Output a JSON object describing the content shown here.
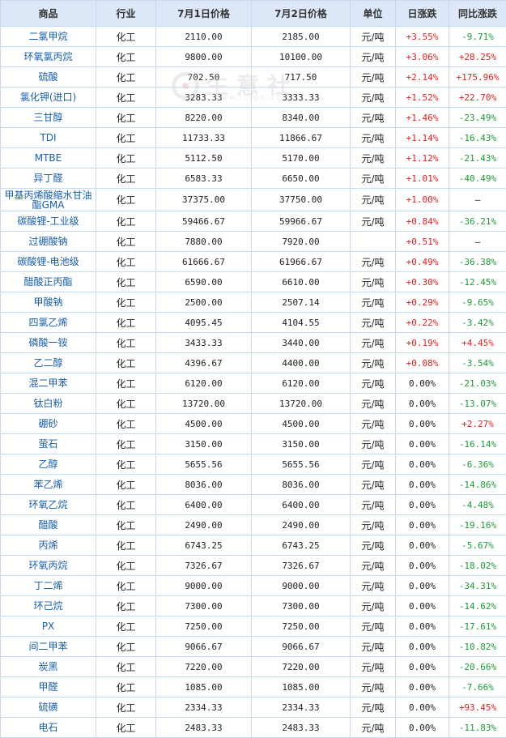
{
  "headers": [
    "商品",
    "行业",
    "7月1日价格",
    "7月2日价格",
    "单位",
    "日涨跌",
    "同比涨跌"
  ],
  "watermark": {
    "text": "生意社",
    "url": "www.100ppi.com"
  },
  "rows": [
    {
      "name": "二氯甲烷",
      "industry": "化工",
      "p1": "2110.00",
      "p2": "2185.00",
      "unit": "元/吨",
      "day": "+3.55%",
      "day_dir": "up",
      "yoy": "-9.71%",
      "yoy_dir": "down"
    },
    {
      "name": "环氧氯丙烷",
      "industry": "化工",
      "p1": "9800.00",
      "p2": "10100.00",
      "unit": "元/吨",
      "day": "+3.06%",
      "day_dir": "up",
      "yoy": "+28.25%",
      "yoy_dir": "up"
    },
    {
      "name": "硫酸",
      "industry": "化工",
      "p1": "702.50",
      "p2": "717.50",
      "unit": "元/吨",
      "day": "+2.14%",
      "day_dir": "up",
      "yoy": "+175.96%",
      "yoy_dir": "up"
    },
    {
      "name": "氯化钾(进口)",
      "industry": "化工",
      "p1": "3283.33",
      "p2": "3333.33",
      "unit": "元/吨",
      "day": "+1.52%",
      "day_dir": "up",
      "yoy": "+22.70%",
      "yoy_dir": "up"
    },
    {
      "name": "三甘醇",
      "industry": "化工",
      "p1": "8220.00",
      "p2": "8340.00",
      "unit": "元/吨",
      "day": "+1.46%",
      "day_dir": "up",
      "yoy": "-23.49%",
      "yoy_dir": "down"
    },
    {
      "name": "TDI",
      "industry": "化工",
      "p1": "11733.33",
      "p2": "11866.67",
      "unit": "元/吨",
      "day": "+1.14%",
      "day_dir": "up",
      "yoy": "-16.43%",
      "yoy_dir": "down"
    },
    {
      "name": "MTBE",
      "industry": "化工",
      "p1": "5112.50",
      "p2": "5170.00",
      "unit": "元/吨",
      "day": "+1.12%",
      "day_dir": "up",
      "yoy": "-21.43%",
      "yoy_dir": "down"
    },
    {
      "name": "异丁醛",
      "industry": "化工",
      "p1": "6583.33",
      "p2": "6650.00",
      "unit": "元/吨",
      "day": "+1.01%",
      "day_dir": "up",
      "yoy": "-40.49%",
      "yoy_dir": "down"
    },
    {
      "name": "甲基丙烯酸缩水甘油酯GMA",
      "industry": "化工",
      "p1": "37375.00",
      "p2": "37750.00",
      "unit": "元/吨",
      "day": "+1.00%",
      "day_dir": "up",
      "yoy": "—",
      "yoy_dir": "na",
      "tall": true
    },
    {
      "name": "碳酸锂-工业级",
      "industry": "化工",
      "p1": "59466.67",
      "p2": "59966.67",
      "unit": "元/吨",
      "day": "+0.84%",
      "day_dir": "up",
      "yoy": "-36.21%",
      "yoy_dir": "down"
    },
    {
      "name": "过硼酸钠",
      "industry": "化工",
      "p1": "7880.00",
      "p2": "7920.00",
      "unit": "",
      "day": "+0.51%",
      "day_dir": "up",
      "yoy": "—",
      "yoy_dir": "na"
    },
    {
      "name": "碳酸锂-电池级",
      "industry": "化工",
      "p1": "61666.67",
      "p2": "61966.67",
      "unit": "元/吨",
      "day": "+0.49%",
      "day_dir": "up",
      "yoy": "-36.38%",
      "yoy_dir": "down"
    },
    {
      "name": "醋酸正丙酯",
      "industry": "化工",
      "p1": "6590.00",
      "p2": "6610.00",
      "unit": "元/吨",
      "day": "+0.30%",
      "day_dir": "up",
      "yoy": "-12.45%",
      "yoy_dir": "down"
    },
    {
      "name": "甲酸钠",
      "industry": "化工",
      "p1": "2500.00",
      "p2": "2507.14",
      "unit": "元/吨",
      "day": "+0.29%",
      "day_dir": "up",
      "yoy": "-9.65%",
      "yoy_dir": "down"
    },
    {
      "name": "四氯乙烯",
      "industry": "化工",
      "p1": "4095.45",
      "p2": "4104.55",
      "unit": "元/吨",
      "day": "+0.22%",
      "day_dir": "up",
      "yoy": "-3.42%",
      "yoy_dir": "down"
    },
    {
      "name": "磷酸一铵",
      "industry": "化工",
      "p1": "3433.33",
      "p2": "3440.00",
      "unit": "元/吨",
      "day": "+0.19%",
      "day_dir": "up",
      "yoy": "+4.45%",
      "yoy_dir": "up"
    },
    {
      "name": "乙二醇",
      "industry": "化工",
      "p1": "4396.67",
      "p2": "4400.00",
      "unit": "元/吨",
      "day": "+0.08%",
      "day_dir": "up",
      "yoy": "-3.54%",
      "yoy_dir": "down"
    },
    {
      "name": "混二甲苯",
      "industry": "化工",
      "p1": "6120.00",
      "p2": "6120.00",
      "unit": "元/吨",
      "day": "0.00%",
      "day_dir": "flat",
      "yoy": "-21.03%",
      "yoy_dir": "down"
    },
    {
      "name": "钛白粉",
      "industry": "化工",
      "p1": "13720.00",
      "p2": "13720.00",
      "unit": "元/吨",
      "day": "0.00%",
      "day_dir": "flat",
      "yoy": "-13.07%",
      "yoy_dir": "down"
    },
    {
      "name": "硼砂",
      "industry": "化工",
      "p1": "4500.00",
      "p2": "4500.00",
      "unit": "元/吨",
      "day": "0.00%",
      "day_dir": "flat",
      "yoy": "+2.27%",
      "yoy_dir": "up"
    },
    {
      "name": "萤石",
      "industry": "化工",
      "p1": "3150.00",
      "p2": "3150.00",
      "unit": "元/吨",
      "day": "0.00%",
      "day_dir": "flat",
      "yoy": "-16.14%",
      "yoy_dir": "down"
    },
    {
      "name": "乙醇",
      "industry": "化工",
      "p1": "5655.56",
      "p2": "5655.56",
      "unit": "元/吨",
      "day": "0.00%",
      "day_dir": "flat",
      "yoy": "-6.36%",
      "yoy_dir": "down"
    },
    {
      "name": "苯乙烯",
      "industry": "化工",
      "p1": "8036.00",
      "p2": "8036.00",
      "unit": "元/吨",
      "day": "0.00%",
      "day_dir": "flat",
      "yoy": "-14.86%",
      "yoy_dir": "down"
    },
    {
      "name": "环氧乙烷",
      "industry": "化工",
      "p1": "6400.00",
      "p2": "6400.00",
      "unit": "元/吨",
      "day": "0.00%",
      "day_dir": "flat",
      "yoy": "-4.48%",
      "yoy_dir": "down"
    },
    {
      "name": "醋酸",
      "industry": "化工",
      "p1": "2490.00",
      "p2": "2490.00",
      "unit": "元/吨",
      "day": "0.00%",
      "day_dir": "flat",
      "yoy": "-19.16%",
      "yoy_dir": "down"
    },
    {
      "name": "丙烯",
      "industry": "化工",
      "p1": "6743.25",
      "p2": "6743.25",
      "unit": "元/吨",
      "day": "0.00%",
      "day_dir": "flat",
      "yoy": "-5.67%",
      "yoy_dir": "down"
    },
    {
      "name": "环氧丙烷",
      "industry": "化工",
      "p1": "7326.67",
      "p2": "7326.67",
      "unit": "元/吨",
      "day": "0.00%",
      "day_dir": "flat",
      "yoy": "-18.02%",
      "yoy_dir": "down"
    },
    {
      "name": "丁二烯",
      "industry": "化工",
      "p1": "9000.00",
      "p2": "9000.00",
      "unit": "元/吨",
      "day": "0.00%",
      "day_dir": "flat",
      "yoy": "-34.31%",
      "yoy_dir": "down"
    },
    {
      "name": "环己烷",
      "industry": "化工",
      "p1": "7300.00",
      "p2": "7300.00",
      "unit": "元/吨",
      "day": "0.00%",
      "day_dir": "flat",
      "yoy": "-14.62%",
      "yoy_dir": "down"
    },
    {
      "name": "PX",
      "industry": "化工",
      "p1": "7250.00",
      "p2": "7250.00",
      "unit": "元/吨",
      "day": "0.00%",
      "day_dir": "flat",
      "yoy": "-17.61%",
      "yoy_dir": "down"
    },
    {
      "name": "间二甲苯",
      "industry": "化工",
      "p1": "9066.67",
      "p2": "9066.67",
      "unit": "元/吨",
      "day": "0.00%",
      "day_dir": "flat",
      "yoy": "-10.82%",
      "yoy_dir": "down"
    },
    {
      "name": "炭黑",
      "industry": "化工",
      "p1": "7220.00",
      "p2": "7220.00",
      "unit": "元/吨",
      "day": "0.00%",
      "day_dir": "flat",
      "yoy": "-20.66%",
      "yoy_dir": "down"
    },
    {
      "name": "甲醛",
      "industry": "化工",
      "p1": "1085.00",
      "p2": "1085.00",
      "unit": "元/吨",
      "day": "0.00%",
      "day_dir": "flat",
      "yoy": "-7.66%",
      "yoy_dir": "down"
    },
    {
      "name": "硫磺",
      "industry": "化工",
      "p1": "2334.33",
      "p2": "2334.33",
      "unit": "元/吨",
      "day": "0.00%",
      "day_dir": "flat",
      "yoy": "+93.45%",
      "yoy_dir": "up"
    },
    {
      "name": "电石",
      "industry": "化工",
      "p1": "2483.33",
      "p2": "2483.33",
      "unit": "元/吨",
      "day": "0.00%",
      "day_dir": "flat",
      "yoy": "-11.83%",
      "yoy_dir": "down"
    }
  ]
}
